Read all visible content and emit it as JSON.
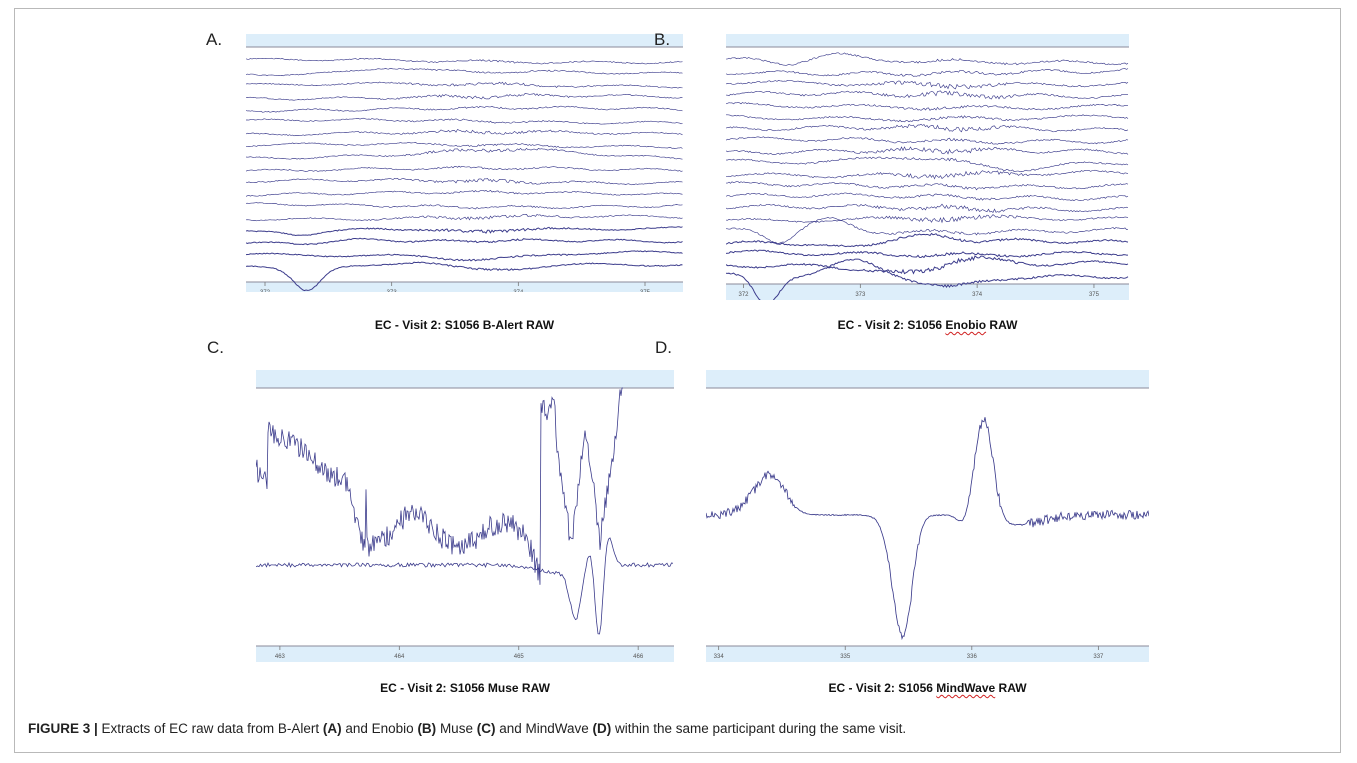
{
  "chart_data": [
    {
      "id": "A",
      "type": "line",
      "panel_label": "A.",
      "title_prefix": "EC - Visit 2: S1056 ",
      "title_device": "B-Alert",
      "title_suffix": " RAW",
      "channels": 18,
      "x_ticks": [
        "372",
        "373",
        "374",
        "375"
      ],
      "xlim": [
        371.85,
        375.3
      ],
      "trace_color": "#3c3c8c"
    },
    {
      "id": "B",
      "type": "line",
      "panel_label": "B.",
      "title_prefix": "EC - Visit 2: S1056 ",
      "title_device": "Enobio",
      "title_suffix": " RAW",
      "channels": 20,
      "x_ticks": [
        "372",
        "373",
        "374",
        "375"
      ],
      "xlim": [
        371.85,
        375.3
      ],
      "trace_color": "#3c3c8c"
    },
    {
      "id": "C",
      "type": "line",
      "panel_label": "C.",
      "title_prefix": "EC - Visit 2: S1056 ",
      "title_device": "Muse",
      "title_suffix": " RAW",
      "channels": 2,
      "x_ticks": [
        "463",
        "464",
        "465",
        "466"
      ],
      "xlim": [
        462.8,
        466.3
      ],
      "trace_color": "#3c3c8c"
    },
    {
      "id": "D",
      "type": "line",
      "panel_label": "D.",
      "title_prefix": "EC - Visit 2: S1056 ",
      "title_device": "MindWave",
      "title_suffix": " RAW",
      "channels": 1,
      "x_ticks": [
        "334",
        "335",
        "336",
        "337"
      ],
      "xlim": [
        333.9,
        337.4
      ],
      "trace_color": "#3c3c8c"
    }
  ],
  "caption": {
    "figure_label": "FIGURE 3 |",
    "segments": [
      {
        "text": " Extracts of EC raw data from B-Alert ",
        "bold": false
      },
      {
        "text": "(A)",
        "bold": true
      },
      {
        "text": " and Enobio ",
        "bold": false
      },
      {
        "text": "(B)",
        "bold": true
      },
      {
        "text": " Muse ",
        "bold": false
      },
      {
        "text": "(C)",
        "bold": true
      },
      {
        "text": " and MindWave ",
        "bold": false
      },
      {
        "text": "(D)",
        "bold": true
      },
      {
        "text": " within the same participant during the same visit.",
        "bold": false
      }
    ]
  },
  "colors": {
    "header_band": "#ddeefa",
    "axis_line": "#8a8a9a",
    "trace": "#3c3c8c"
  }
}
